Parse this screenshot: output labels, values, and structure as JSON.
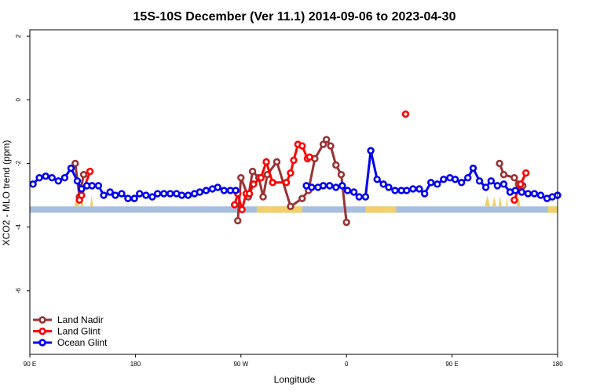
{
  "chart_data": {
    "type": "line",
    "title": "15S-10S December (Ver 11.1)   2014-09-06 to 2023-04-30",
    "xlabel": "Longitude",
    "ylabel": "XCO2 - MLO trend (ppm)",
    "xlim": [
      0,
      500
    ],
    "ylim": [
      -8,
      2.2
    ],
    "x_ticks": [
      {
        "pos": 0,
        "label": "90 E"
      },
      {
        "pos": 100,
        "label": "180"
      },
      {
        "pos": 200,
        "label": "90 W"
      },
      {
        "pos": 300,
        "label": "0"
      },
      {
        "pos": 400,
        "label": "90 E"
      },
      {
        "pos": 500,
        "label": "180"
      }
    ],
    "y_ticks": [
      2,
      0,
      -2,
      -4,
      -6
    ],
    "legend_position": "bottom-left",
    "band": {
      "y_top": -3.35,
      "y_bottom": -3.55,
      "ocean_color": "#a8bede",
      "land_color": "#f2cf6a",
      "land_segments": [
        [
          215,
          258
        ],
        [
          318,
          347
        ],
        [
          491,
          500
        ]
      ]
    },
    "land_bumps": [
      [
        42,
        47,
        0.35
      ],
      [
        48,
        51,
        0.25
      ],
      [
        57,
        60,
        0.35
      ],
      [
        431,
        436,
        0.35
      ],
      [
        438,
        442,
        0.3
      ],
      [
        444,
        447,
        0.35
      ],
      [
        451,
        453,
        0.3
      ],
      [
        461,
        465,
        0.3
      ]
    ],
    "series": [
      {
        "name": "Land Nadir",
        "color": "#993333",
        "x": [
          43,
          47,
          51,
          197,
          200,
          207,
          211,
          217,
          221,
          225,
          234,
          247,
          258,
          264,
          270,
          278,
          281,
          285,
          290,
          295,
          300,
          445,
          449,
          459,
          463,
          467
        ],
        "y": [
          -2,
          -3.05,
          -2.35,
          -3.8,
          -2.45,
          -3.05,
          -2.25,
          -2.45,
          -3.05,
          -2.35,
          -1.95,
          -3.35,
          -3.1,
          -2.85,
          -1.85,
          -1.4,
          -1.25,
          -1.45,
          -2.05,
          -2.35,
          -3.85,
          -2.0,
          -2.35,
          -2.45,
          -2.65,
          -2.7
        ]
      },
      {
        "name": "Land Glint",
        "color": "#ff0000",
        "x": [
          47,
          49,
          57,
          194,
          197,
          201,
          205,
          208,
          212,
          219,
          224,
          230,
          243,
          247,
          250,
          254,
          258,
          263,
          265,
          356,
          459,
          465,
          470
        ],
        "y": [
          -3.15,
          -3.0,
          -2.25,
          -3.3,
          -2.95,
          -3.45,
          -2.95,
          -2.95,
          -2.65,
          -2.45,
          -1.95,
          -2.6,
          -2.6,
          -2.3,
          -1.9,
          -1.4,
          -1.45,
          -1.85,
          -1.8,
          -0.45,
          -3.15,
          -2.65,
          -2.3
        ]
      },
      {
        "name": "Ocean Glint",
        "color": "#0000ee",
        "x": [
          3,
          9,
          15,
          21,
          27,
          33,
          39,
          45,
          49,
          54,
          59,
          65,
          70,
          76,
          81,
          87,
          93,
          99,
          104,
          110,
          116,
          121,
          127,
          133,
          139,
          144,
          150,
          156,
          161,
          167,
          173,
          178,
          184,
          190,
          195,
          262,
          267,
          273,
          278,
          284,
          290,
          296,
          301,
          307,
          312,
          318,
          323,
          329,
          335,
          340,
          346,
          352,
          357,
          363,
          369,
          374,
          380,
          386,
          392,
          398,
          403,
          409,
          415,
          420,
          426,
          432,
          437,
          443,
          449,
          455,
          460,
          466,
          472,
          478,
          484,
          490,
          495,
          500
        ],
        "y": [
          -2.65,
          -2.45,
          -2.4,
          -2.45,
          -2.55,
          -2.45,
          -2.15,
          -2.55,
          -2.8,
          -2.7,
          -2.7,
          -2.7,
          -3.0,
          -2.9,
          -3.0,
          -2.95,
          -3.1,
          -3.1,
          -2.95,
          -3.0,
          -3.05,
          -2.95,
          -2.95,
          -2.95,
          -2.95,
          -3.0,
          -3.0,
          -2.95,
          -2.9,
          -2.85,
          -2.8,
          -2.75,
          -2.85,
          -2.85,
          -2.85,
          -2.7,
          -2.75,
          -2.75,
          -2.7,
          -2.7,
          -2.75,
          -2.7,
          -2.85,
          -2.9,
          -3.05,
          -3.05,
          -1.6,
          -2.5,
          -2.65,
          -2.75,
          -2.85,
          -2.85,
          -2.85,
          -2.8,
          -2.8,
          -2.95,
          -2.6,
          -2.65,
          -2.5,
          -2.45,
          -2.5,
          -2.6,
          -2.45,
          -2.15,
          -2.55,
          -2.75,
          -2.55,
          -2.7,
          -2.65,
          -2.9,
          -2.85,
          -2.9,
          -2.95,
          -2.95,
          -3.0,
          -3.1,
          -3.05,
          -3.0
        ]
      }
    ]
  }
}
